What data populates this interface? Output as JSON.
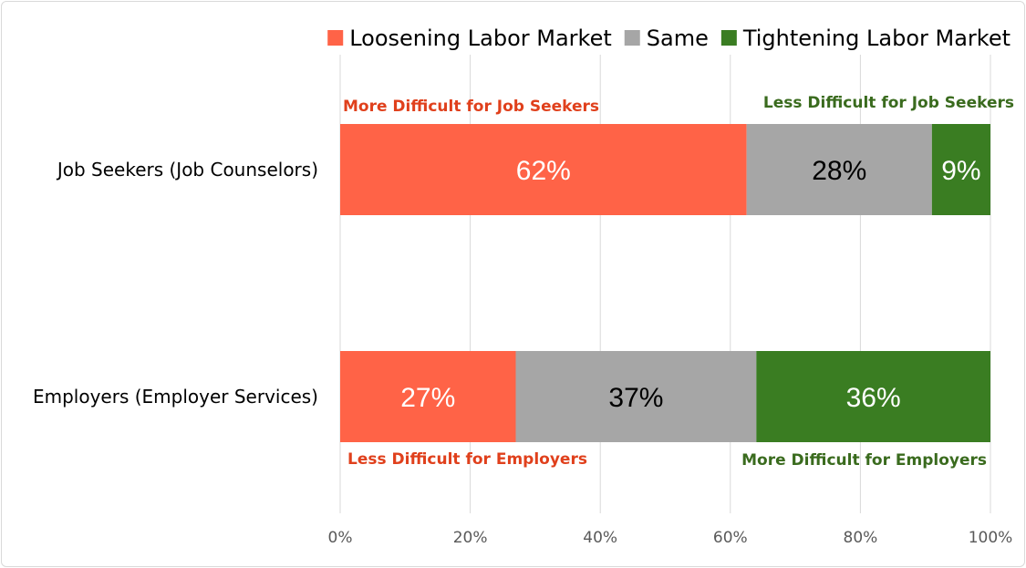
{
  "chart_data": {
    "type": "bar",
    "orientation": "horizontal",
    "stacked": true,
    "categories": [
      "Job Seekers (Job Counselors)",
      "Employers (Employer Services)"
    ],
    "series": [
      {
        "name": "Loosening Labor Market",
        "color": "#FF6347",
        "label_color": "#FFFFFF",
        "values": [
          62.5,
          27
        ],
        "labels": [
          "62%",
          "27%"
        ]
      },
      {
        "name": "Same",
        "color": "#A6A6A6",
        "label_color": "#000000",
        "values": [
          28.5,
          37
        ],
        "labels": [
          "28%",
          "37%"
        ]
      },
      {
        "name": "Tightening Labor Market",
        "color": "#3A7D22",
        "label_color": "#FFFFFF",
        "values": [
          9,
          36
        ],
        "labels": [
          "9%",
          "36%"
        ]
      }
    ],
    "xlim": [
      0,
      100
    ],
    "x_ticks": [
      "0%",
      "20%",
      "40%",
      "60%",
      "80%",
      "100%"
    ],
    "x_tick_values": [
      0,
      20,
      40,
      60,
      80,
      100
    ],
    "grid": "vertical",
    "legend_position": "top-right",
    "annotations": [
      {
        "text": "More Difficult for Job Seekers",
        "color": "#E0401C",
        "category": 0,
        "placement": "above-left"
      },
      {
        "text": "Less Difficult for Job Seekers",
        "color": "#3A6B1E",
        "category": 0,
        "placement": "above-right"
      },
      {
        "text": "Less Difficult for Employers",
        "color": "#E0401C",
        "category": 1,
        "placement": "below-left"
      },
      {
        "text": "More Difficult for Employers",
        "color": "#3A6B1E",
        "category": 1,
        "placement": "below-right"
      }
    ]
  }
}
